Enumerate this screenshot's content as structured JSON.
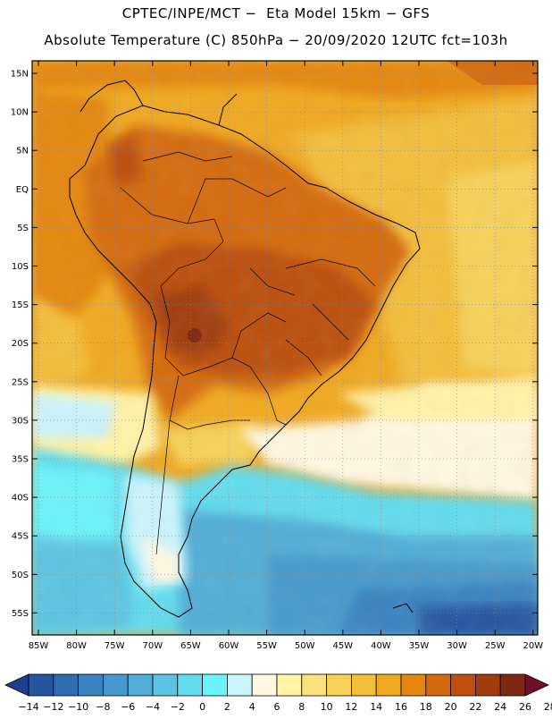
{
  "header": {
    "line1": "CPTEC/INPE/MCT −  Eta Model 15km − GFS",
    "line2": "Absolute Temperature (C) 850hPa − 20/09/2020 12UTC fct=103h"
  },
  "map": {
    "lat_labels": [
      "15N",
      "10N",
      "5N",
      "EQ",
      "5S",
      "10S",
      "15S",
      "20S",
      "25S",
      "30S",
      "35S",
      "40S",
      "45S",
      "50S",
      "55S"
    ],
    "lon_labels": [
      "85W",
      "80W",
      "75W",
      "70W",
      "65W",
      "60W",
      "55W",
      "50W",
      "45W",
      "40W",
      "35W",
      "30W",
      "25W",
      "20W"
    ],
    "grid": "dotted"
  },
  "colorbar": {
    "ticks": [
      "-14",
      "-12",
      "-10",
      "-8",
      "-6",
      "-4",
      "-2",
      "0",
      "2",
      "4",
      "6",
      "8",
      "10",
      "12",
      "14",
      "16",
      "18",
      "20",
      "22",
      "24",
      "26",
      "28"
    ],
    "colors": [
      "#1f3f91",
      "#27559f",
      "#2f6db0",
      "#3a83c0",
      "#4699cc",
      "#52add6",
      "#5cc4e2",
      "#62dcee",
      "#6cf2fa",
      "#cbf4fb",
      "#fff8e2",
      "#fff3a6",
      "#fbe37b",
      "#f7d058",
      "#f3be3b",
      "#efa820",
      "#e48610",
      "#d56a0c",
      "#bd500e",
      "#a03c0e",
      "#7f2711",
      "#6e0f2a"
    ]
  }
}
